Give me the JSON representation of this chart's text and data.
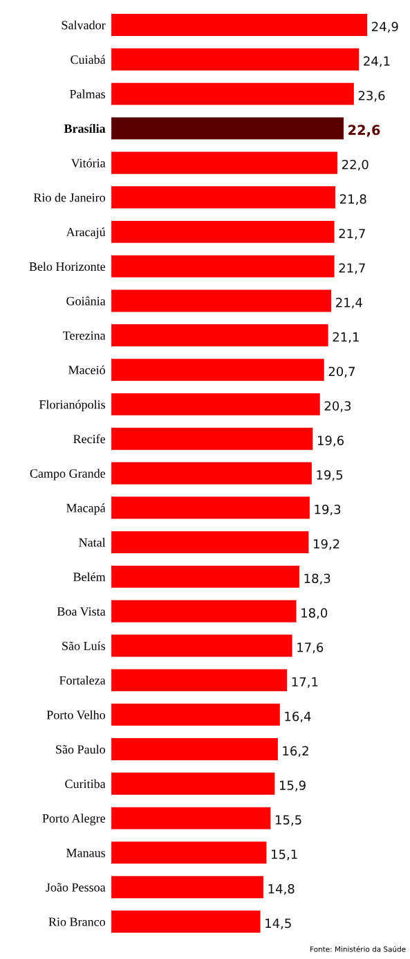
{
  "chart_data": {
    "type": "bar",
    "orientation": "horizontal",
    "value_labels": [
      "24,9",
      "24,1",
      "23,6",
      "22,6",
      "22,0",
      "21,8",
      "21,7",
      "21,7",
      "21,4",
      "21,1",
      "20,7",
      "20,3",
      "19,6",
      "19,5",
      "19,3",
      "19,2",
      "18,3",
      "18,0",
      "17,6",
      "17,1",
      "16,4",
      "16,2",
      "15,9",
      "15,5",
      "15,1",
      "14,8",
      "14,5"
    ],
    "categories": [
      "Salvador",
      "Cuiabá",
      "Palmas",
      "Brasília",
      "Vitória",
      "Rio de Janeiro",
      "Aracajú",
      "Belo Horizonte",
      "Goiânia",
      "Terezina",
      "Maceió",
      "Florianópolis",
      "Recife",
      "Campo Grande",
      "Macapá",
      "Natal",
      "Belém",
      "Boa Vista",
      "São Luís",
      "Fortaleza",
      "Porto Velho",
      "São Paulo",
      "Curitiba",
      "Porto Alegre",
      "Manaus",
      "João Pessoa",
      "Rio Branco"
    ],
    "values": [
      24.9,
      24.1,
      23.6,
      22.6,
      22.0,
      21.8,
      21.7,
      21.7,
      21.4,
      21.1,
      20.7,
      20.3,
      19.6,
      19.5,
      19.3,
      19.2,
      18.3,
      18.0,
      17.6,
      17.1,
      16.4,
      16.2,
      15.9,
      15.5,
      15.1,
      14.8,
      14.5
    ],
    "colors": [
      "#ff0000",
      "#ff0000",
      "#ff0000",
      "#5a0000",
      "#ff0000",
      "#ff0000",
      "#ff0000",
      "#ff0000",
      "#ff0000",
      "#ff0000",
      "#ff0000",
      "#ff0000",
      "#ff0000",
      "#ff0000",
      "#ff0000",
      "#ff0000",
      "#ff0000",
      "#ff0000",
      "#ff0000",
      "#ff0000",
      "#ff0000",
      "#ff0000",
      "#ff0000",
      "#ff0000",
      "#ff0000",
      "#ff0000",
      "#ff0000"
    ],
    "annotations": [
      "Fonte: Ministério da Saúde"
    ]
  }
}
